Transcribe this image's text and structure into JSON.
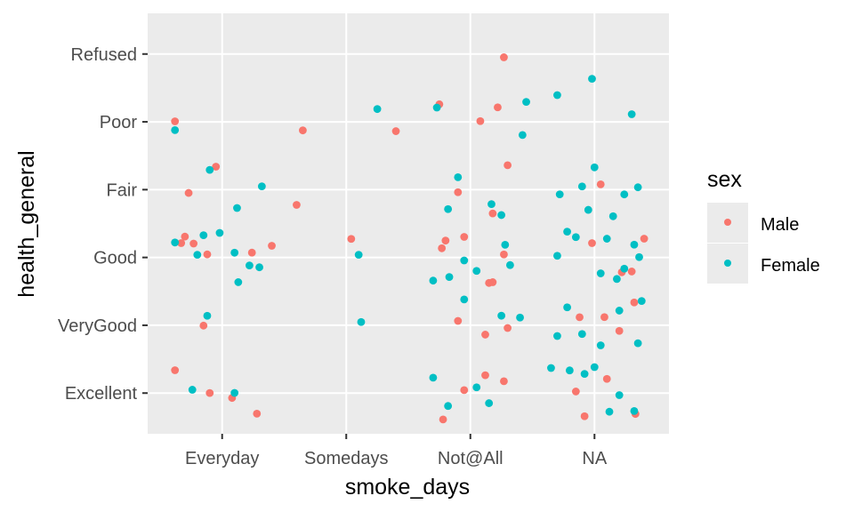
{
  "chart_data": {
    "type": "scatter",
    "jitter": true,
    "xlabel": "smoke_days",
    "ylabel": "health_general",
    "x_categories": [
      "Everyday",
      "Somedays",
      "Not@All",
      "NA"
    ],
    "y_categories": [
      "Excellent",
      "VeryGood",
      "Good",
      "Fair",
      "Poor",
      "Refused"
    ],
    "grid": true,
    "legend": {
      "title": "sex",
      "placement": "right",
      "entries": [
        {
          "name": "Male",
          "color": "#f8766d"
        },
        {
          "name": "Female",
          "color": "#00bfc4"
        }
      ]
    },
    "series": [
      {
        "name": "Male",
        "color": "#f8766d",
        "points": [
          [
            "Everyday",
            "Poor",
            -0.38
          ],
          [
            "Everyday",
            "Fair",
            -0.27
          ],
          [
            "Everyday",
            "Good",
            -0.3
          ],
          [
            "Everyday",
            "Good",
            -0.23
          ],
          [
            "Everyday",
            "Good",
            -0.12
          ],
          [
            "Everyday",
            "VeryGood",
            -0.15
          ],
          [
            "Everyday",
            "Excellent",
            -0.38
          ],
          [
            "Everyday",
            "Excellent",
            0.28
          ],
          [
            "Everyday",
            "Excellent",
            0.08
          ],
          [
            "Everyday",
            "Good",
            0.24
          ],
          [
            "Everyday",
            "Good",
            0.4
          ],
          [
            "Everyday",
            "Fair",
            0.6
          ],
          [
            "Everyday",
            "Poor",
            0.65
          ],
          [
            "Everyday",
            "Fair",
            -0.05
          ],
          [
            "Everyday",
            "Excellent",
            -0.1
          ],
          [
            "Everyday",
            "Good",
            -0.33
          ],
          [
            "Somedays",
            "Poor",
            0.4
          ],
          [
            "Somedays",
            "Good",
            0.04
          ],
          [
            "Not@All",
            "Refused",
            0.27
          ],
          [
            "Not@All",
            "Poor",
            0.08
          ],
          [
            "Not@All",
            "Poor",
            -0.25
          ],
          [
            "Not@All",
            "Fair",
            0.3
          ],
          [
            "Not@All",
            "Fair",
            0.18
          ],
          [
            "Not@All",
            "Good",
            0.15
          ],
          [
            "Not@All",
            "Good",
            -0.05
          ],
          [
            "Not@All",
            "Good",
            0.27
          ],
          [
            "Not@All",
            "Good",
            0.18
          ],
          [
            "Not@All",
            "Good",
            -0.2
          ],
          [
            "Not@All",
            "VeryGood",
            -0.1
          ],
          [
            "Not@All",
            "VeryGood",
            0.3
          ],
          [
            "Not@All",
            "VeryGood",
            0.12
          ],
          [
            "Not@All",
            "Excellent",
            0.27
          ],
          [
            "Not@All",
            "Excellent",
            0.12
          ],
          [
            "Not@All",
            "Excellent",
            -0.22
          ],
          [
            "Not@All",
            "Excellent",
            -0.05
          ],
          [
            "Not@All",
            "Poor",
            0.22
          ],
          [
            "Not@All",
            "Fair",
            -0.1
          ],
          [
            "Not@All",
            "Good",
            -0.23
          ],
          [
            "NA",
            "Good",
            0.4
          ],
          [
            "NA",
            "Good",
            0.22
          ],
          [
            "NA",
            "VeryGood",
            -0.12
          ],
          [
            "NA",
            "VeryGood",
            0.08
          ],
          [
            "NA",
            "VeryGood",
            0.32
          ],
          [
            "NA",
            "Excellent",
            -0.08
          ],
          [
            "NA",
            "Excellent",
            0.1
          ],
          [
            "NA",
            "Excellent",
            0.33
          ],
          [
            "NA",
            "Excellent",
            -0.15
          ],
          [
            "NA",
            "Good",
            -0.02
          ],
          [
            "NA",
            "VeryGood",
            0.2
          ],
          [
            "NA",
            "Fair",
            0.05
          ],
          [
            "NA",
            "Good",
            0.3
          ]
        ]
      },
      {
        "name": "Female",
        "color": "#00bfc4",
        "points": [
          [
            "Everyday",
            "Poor",
            -0.38
          ],
          [
            "Everyday",
            "Fair",
            -0.1
          ],
          [
            "Everyday",
            "Good",
            -0.38
          ],
          [
            "Everyday",
            "Good",
            -0.2
          ],
          [
            "Everyday",
            "Good",
            -0.15
          ],
          [
            "Everyday",
            "Good",
            -0.02
          ],
          [
            "Everyday",
            "Good",
            0.1
          ],
          [
            "Everyday",
            "Good",
            0.3
          ],
          [
            "Everyday",
            "Good",
            0.22
          ],
          [
            "Everyday",
            "Good",
            0.13
          ],
          [
            "Everyday",
            "VeryGood",
            -0.12
          ],
          [
            "Everyday",
            "Excellent",
            -0.24
          ],
          [
            "Everyday",
            "Excellent",
            0.1
          ],
          [
            "Everyday",
            "Fair",
            0.32
          ],
          [
            "Everyday",
            "Fair",
            0.12
          ],
          [
            "Somedays",
            "Good",
            0.1
          ],
          [
            "Somedays",
            "VeryGood",
            0.12
          ],
          [
            "Somedays",
            "Poor",
            0.25
          ],
          [
            "Not@All",
            "Poor",
            -0.27
          ],
          [
            "Not@All",
            "Poor",
            0.42
          ],
          [
            "Not@All",
            "Poor",
            0.45
          ],
          [
            "Not@All",
            "Fair",
            -0.1
          ],
          [
            "Not@All",
            "Fair",
            0.17
          ],
          [
            "Not@All",
            "Fair",
            -0.18
          ],
          [
            "Not@All",
            "Fair",
            0.25
          ],
          [
            "Not@All",
            "Good",
            -0.3
          ],
          [
            "Not@All",
            "Good",
            -0.17
          ],
          [
            "Not@All",
            "Good",
            0.05
          ],
          [
            "Not@All",
            "Good",
            0.32
          ],
          [
            "Not@All",
            "Good",
            -0.05
          ],
          [
            "Not@All",
            "VeryGood",
            -0.05
          ],
          [
            "Not@All",
            "VeryGood",
            0.25
          ],
          [
            "Not@All",
            "VeryGood",
            0.4
          ],
          [
            "Not@All",
            "Excellent",
            -0.3
          ],
          [
            "Not@All",
            "Excellent",
            0.05
          ],
          [
            "Not@All",
            "Excellent",
            0.15
          ],
          [
            "Not@All",
            "Excellent",
            -0.18
          ],
          [
            "Not@All",
            "Good",
            0.28
          ],
          [
            "NA",
            "Refused",
            -0.02
          ],
          [
            "NA",
            "Poor",
            -0.3
          ],
          [
            "NA",
            "Poor",
            0.3
          ],
          [
            "NA",
            "Fair",
            -0.28
          ],
          [
            "NA",
            "Fair",
            -0.1
          ],
          [
            "NA",
            "Fair",
            0.0
          ],
          [
            "NA",
            "Fair",
            0.15
          ],
          [
            "NA",
            "Fair",
            0.35
          ],
          [
            "NA",
            "Fair",
            -0.05
          ],
          [
            "NA",
            "Fair",
            0.24
          ],
          [
            "NA",
            "Good",
            -0.3
          ],
          [
            "NA",
            "Good",
            -0.15
          ],
          [
            "NA",
            "Good",
            0.05
          ],
          [
            "NA",
            "Good",
            0.18
          ],
          [
            "NA",
            "Good",
            0.32
          ],
          [
            "NA",
            "Good",
            -0.22
          ],
          [
            "NA",
            "Good",
            0.1
          ],
          [
            "NA",
            "Good",
            0.24
          ],
          [
            "NA",
            "VeryGood",
            -0.3
          ],
          [
            "NA",
            "VeryGood",
            -0.1
          ],
          [
            "NA",
            "VeryGood",
            0.05
          ],
          [
            "NA",
            "VeryGood",
            0.2
          ],
          [
            "NA",
            "VeryGood",
            0.35
          ],
          [
            "NA",
            "VeryGood",
            -0.22
          ],
          [
            "NA",
            "Excellent",
            -0.35
          ],
          [
            "NA",
            "Excellent",
            -0.2
          ],
          [
            "NA",
            "Excellent",
            0.0
          ],
          [
            "NA",
            "Excellent",
            0.2
          ],
          [
            "NA",
            "Excellent",
            0.32
          ],
          [
            "NA",
            "Excellent",
            0.12
          ],
          [
            "NA",
            "Excellent",
            -0.08
          ],
          [
            "NA",
            "Good",
            0.36
          ],
          [
            "NA",
            "VeryGood",
            0.38
          ]
        ]
      }
    ]
  }
}
